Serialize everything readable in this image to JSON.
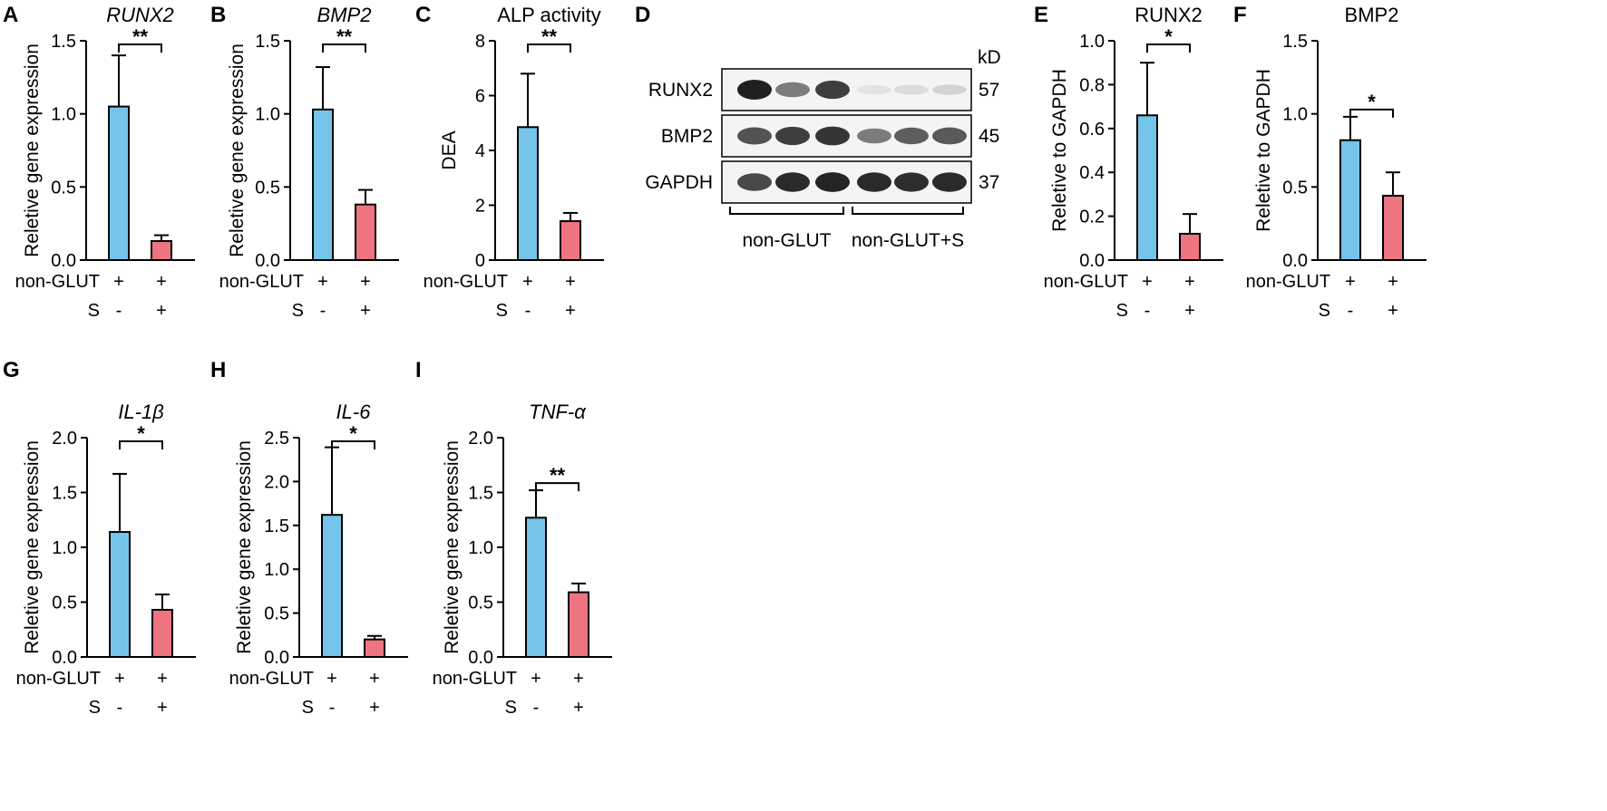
{
  "colors": {
    "control": "#75c5ea",
    "treated": "#ee7481",
    "axis": "#000000"
  },
  "labels": {
    "group": "non-GLUT",
    "treatment": "S",
    "plus": "+",
    "minus": "-"
  },
  "chart_data": [
    {
      "id": "A",
      "letter": "A",
      "type": "bar",
      "title": "RUNX2",
      "title_italic": true,
      "ylabel": "Reletive gene expression",
      "ylim": [
        0,
        1.5
      ],
      "yticks": [
        "0.0",
        "0.5",
        "1.0",
        "1.5"
      ],
      "categories": [
        "non-GLUT",
        "non-GLUT+S"
      ],
      "values": [
        1.05,
        0.13
      ],
      "errors": [
        0.35,
        0.04
      ],
      "significance": "**",
      "conditions": [
        {
          "non-GLUT": "+",
          "S": "-"
        },
        {
          "non-GLUT": "+",
          "S": "+"
        }
      ]
    },
    {
      "id": "B",
      "letter": "B",
      "type": "bar",
      "title": "BMP2",
      "title_italic": true,
      "ylabel": "Reletive gene expression",
      "ylim": [
        0,
        1.5
      ],
      "yticks": [
        "0.0",
        "0.5",
        "1.0",
        "1.5"
      ],
      "categories": [
        "non-GLUT",
        "non-GLUT+S"
      ],
      "values": [
        1.03,
        0.38
      ],
      "errors": [
        0.29,
        0.1
      ],
      "significance": "**",
      "conditions": [
        {
          "non-GLUT": "+",
          "S": "-"
        },
        {
          "non-GLUT": "+",
          "S": "+"
        }
      ]
    },
    {
      "id": "C",
      "letter": "C",
      "type": "bar",
      "title": "ALP activity",
      "title_italic": false,
      "ylabel": "DEA",
      "ylim": [
        0,
        8
      ],
      "yticks": [
        "0",
        "2",
        "4",
        "6",
        "8"
      ],
      "categories": [
        "non-GLUT",
        "non-GLUT+S"
      ],
      "values": [
        4.85,
        1.42
      ],
      "errors": [
        1.95,
        0.3
      ],
      "significance": "**",
      "conditions": [
        {
          "non-GLUT": "+",
          "S": "-"
        },
        {
          "non-GLUT": "+",
          "S": "+"
        }
      ]
    },
    {
      "id": "E",
      "letter": "E",
      "type": "bar",
      "title": "RUNX2",
      "title_italic": false,
      "ylabel": "Reletive to GAPDH",
      "ylim": [
        0,
        1.0
      ],
      "yticks": [
        "0.0",
        "0.2",
        "0.4",
        "0.6",
        "0.8",
        "1.0"
      ],
      "categories": [
        "non-GLUT",
        "non-GLUT+S"
      ],
      "values": [
        0.66,
        0.12
      ],
      "errors": [
        0.24,
        0.09
      ],
      "significance": "*",
      "conditions": [
        {
          "non-GLUT": "+",
          "S": "-"
        },
        {
          "non-GLUT": "+",
          "S": "+"
        }
      ]
    },
    {
      "id": "F",
      "letter": "F",
      "type": "bar",
      "title": "BMP2",
      "title_italic": false,
      "ylabel": "Reletive to GAPDH",
      "ylim": [
        0,
        1.5
      ],
      "yticks": [
        "0.0",
        "0.5",
        "1.0",
        "1.5"
      ],
      "categories": [
        "non-GLUT",
        "non-GLUT+S"
      ],
      "values": [
        0.82,
        0.44
      ],
      "errors": [
        0.16,
        0.16
      ],
      "significance": "*",
      "conditions": [
        {
          "non-GLUT": "+",
          "S": "-"
        },
        {
          "non-GLUT": "+",
          "S": "+"
        }
      ]
    },
    {
      "id": "G",
      "letter": "G",
      "type": "bar",
      "title": "IL-1β",
      "title_italic": true,
      "ylabel": "Reletive gene expression",
      "ylim": [
        0,
        2.0
      ],
      "yticks": [
        "0.0",
        "0.5",
        "1.0",
        "1.5",
        "2.0"
      ],
      "categories": [
        "non-GLUT",
        "non-GLUT+S"
      ],
      "values": [
        1.14,
        0.43
      ],
      "errors": [
        0.53,
        0.14
      ],
      "significance": "*",
      "conditions": [
        {
          "non-GLUT": "+",
          "S": "-"
        },
        {
          "non-GLUT": "+",
          "S": "+"
        }
      ]
    },
    {
      "id": "H",
      "letter": "H",
      "type": "bar",
      "title": "IL-6",
      "title_italic": true,
      "ylabel": "Reletive gene expression",
      "ylim": [
        0,
        2.5
      ],
      "yticks": [
        "0.0",
        "0.5",
        "1.0",
        "1.5",
        "2.0",
        "2.5"
      ],
      "categories": [
        "non-GLUT",
        "non-GLUT+S"
      ],
      "values": [
        1.62,
        0.2
      ],
      "errors": [
        0.77,
        0.04
      ],
      "significance": "*",
      "conditions": [
        {
          "non-GLUT": "+",
          "S": "-"
        },
        {
          "non-GLUT": "+",
          "S": "+"
        }
      ]
    },
    {
      "id": "I",
      "letter": "I",
      "type": "bar",
      "title": "TNF-α",
      "title_italic": true,
      "ylabel": "Reletive gene expression",
      "ylim": [
        0,
        2.0
      ],
      "yticks": [
        "0.0",
        "0.5",
        "1.0",
        "1.5",
        "2.0"
      ],
      "categories": [
        "non-GLUT",
        "non-GLUT+S"
      ],
      "values": [
        1.27,
        0.59
      ],
      "errors": [
        0.25,
        0.08
      ],
      "significance": "**",
      "conditions": [
        {
          "non-GLUT": "+",
          "S": "-"
        },
        {
          "non-GLUT": "+",
          "S": "+"
        }
      ]
    }
  ],
  "blot": {
    "letter": "D",
    "unit": "kD",
    "rows": [
      {
        "protein": "RUNX2",
        "kd": "57",
        "intensities": [
          1.0,
          0.55,
          0.85,
          0.04,
          0.08,
          0.12
        ]
      },
      {
        "protein": "BMP2",
        "kd": "45",
        "intensities": [
          0.75,
          0.85,
          0.9,
          0.55,
          0.7,
          0.72
        ]
      },
      {
        "protein": "GAPDH",
        "kd": "37",
        "intensities": [
          0.8,
          0.95,
          0.98,
          0.95,
          0.93,
          0.95
        ]
      }
    ],
    "groups": [
      "non-GLUT",
      "non-GLUT+S"
    ]
  }
}
